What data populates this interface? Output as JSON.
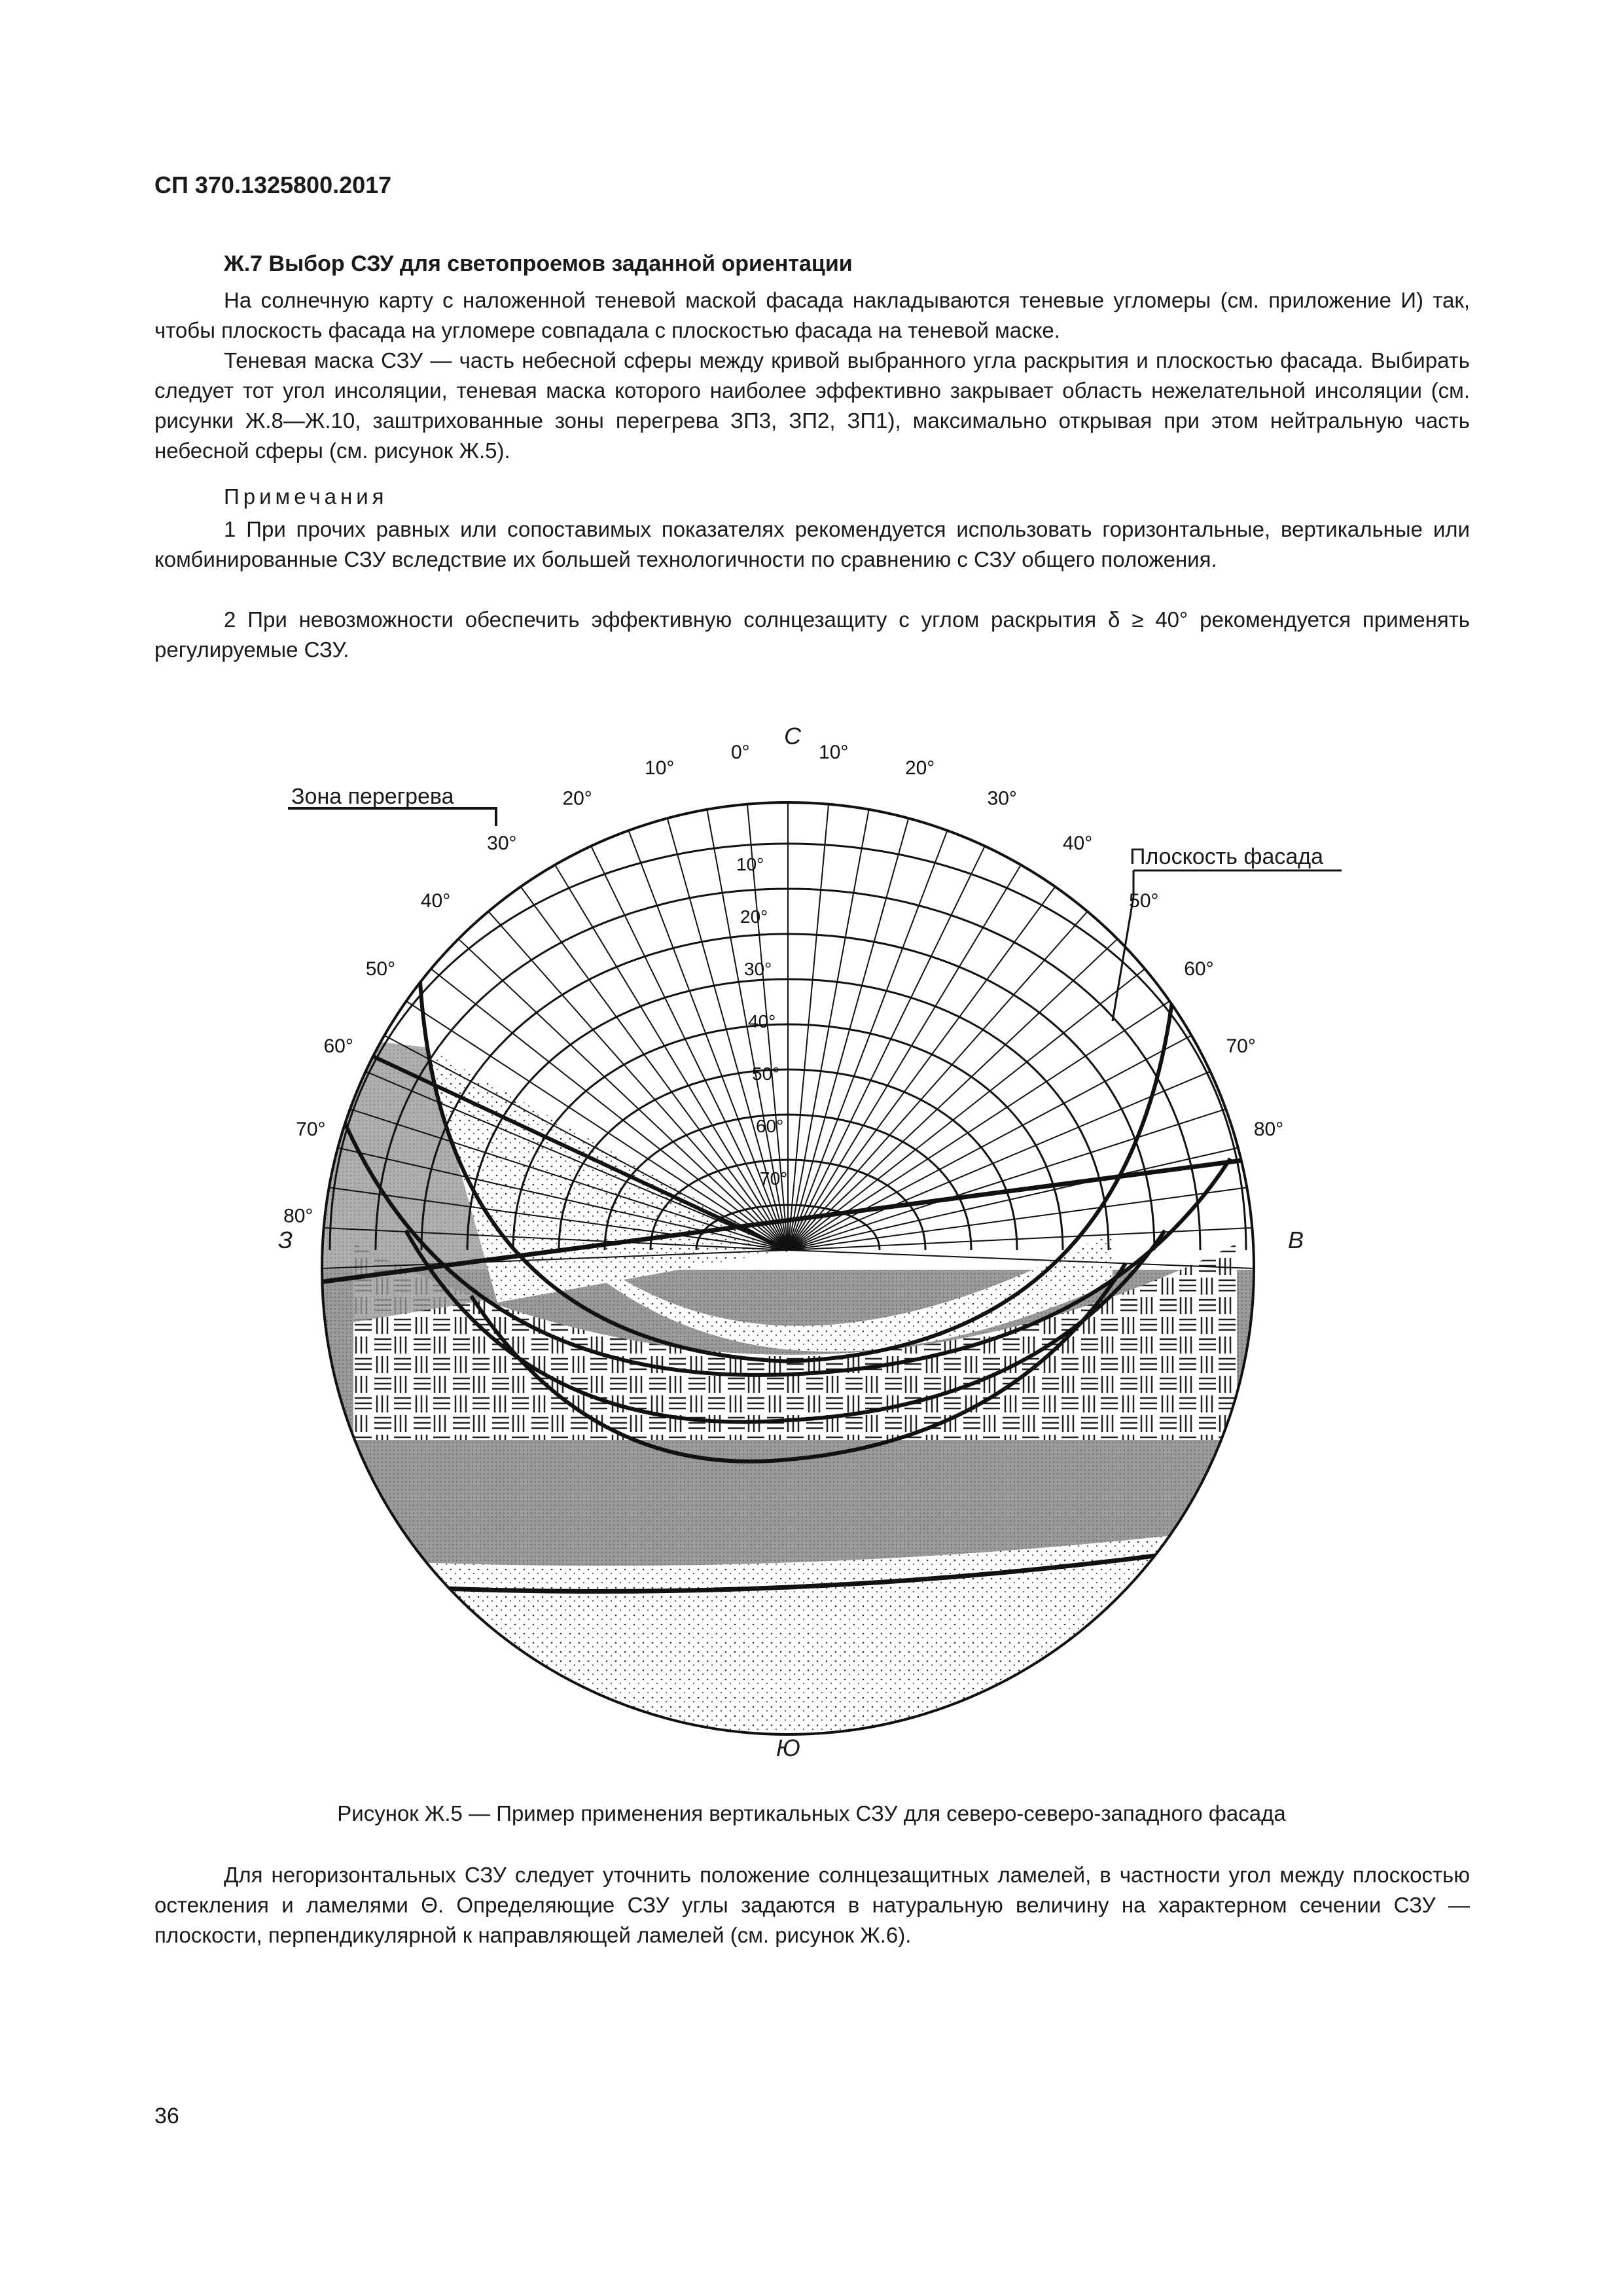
{
  "header": {
    "doc_code": "СП 370.1325800.2017"
  },
  "section": {
    "title": "Ж.7 Выбор СЗУ для светопроемов заданной ориентации",
    "paragraphs": [
      "На солнечную карту с наложенной теневой маской фасада накладываются теневые угломеры (см. приложение И) так, чтобы плоскость фасада на угломере совпадала с плоскостью фасада на теневой маске.",
      "Теневая маска СЗУ — часть небесной сферы между кривой выбранного угла раскрытия и плоскостью фасада. Выбирать следует тот угол инсоляции, теневая маска которого наиболее эффективно закрывает область нежелательной инсоляции (см. рисунки Ж.8—Ж.10, заштрихованные зоны перегрева ЗП3, ЗП2, ЗП1), максимально открывая при этом нейтральную часть небесной сферы (см. рисунок Ж.5)."
    ],
    "notes_heading": "Примечания",
    "notes": [
      "1  При прочих равных или сопоставимых показателях рекомендуется использовать горизонтальные, вертикальные или комбинированные СЗУ вследствие их большей технологичности по сравнению с СЗУ общего положения.",
      "2  При невозможности обеспечить эффективную солнцезащиту с углом раскрытия δ ≥ 40° рекомендуется применять регулируемые СЗУ."
    ]
  },
  "figure": {
    "directions": {
      "north": "С",
      "west": "З",
      "east": "В",
      "south": "Ю"
    },
    "callouts": {
      "overheat_zone": "Зона перегрева",
      "facade_plane": "Плоскость фасада"
    },
    "outer_labels": [
      "80°",
      "70°",
      "60°",
      "50°",
      "40°",
      "30°",
      "20°",
      "10°",
      "0°",
      "10°",
      "20°",
      "30°",
      "40°",
      "50°",
      "60°",
      "70°",
      "80°"
    ],
    "inner_labels": [
      "10°",
      "20°",
      "30°",
      "40°",
      "50°",
      "60°",
      "70°"
    ],
    "caption": "Рисунок Ж.5 — Пример применения вертикальных СЗУ для северо-северо-западного фасада"
  },
  "closing_paragraph": "Для негоризонтальных СЗУ следует уточнить положение солнцезащитных ламелей, в частности угол между плоскостью остекления и ламелями Θ. Определяющие СЗУ углы задаются в натуральную величину на характерном сечении СЗУ — плоскости, перпендикулярной к направляющей ламелей (см. рисунок Ж.6).",
  "page_number": "36"
}
